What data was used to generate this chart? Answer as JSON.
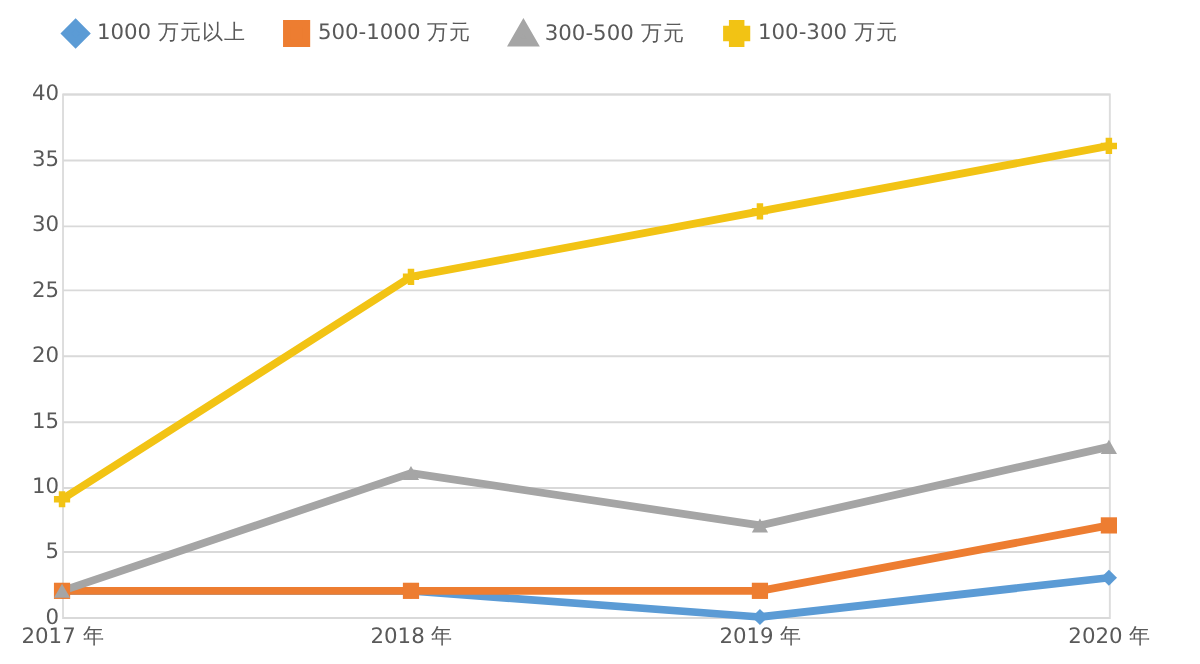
{
  "chart_data": {
    "type": "line",
    "categories": [
      "2017 年",
      "2018 年",
      "2019 年",
      "2020 年"
    ],
    "series": [
      {
        "name": "1000 万元以上",
        "color": "#5b9bd5",
        "marker": "diamond",
        "values": [
          2,
          2,
          0,
          3
        ]
      },
      {
        "name": "500-1000 万元",
        "color": "#ed7d31",
        "marker": "square",
        "values": [
          2,
          2,
          2,
          7
        ]
      },
      {
        "name": "300-500 万元",
        "color": "#a5a5a5",
        "marker": "triangle",
        "values": [
          2,
          11,
          7,
          13
        ]
      },
      {
        "name": "100-300 万元",
        "color": "#f2c314",
        "marker": "cross",
        "values": [
          9,
          26,
          31,
          36
        ]
      }
    ],
    "ylim": [
      0,
      40
    ],
    "yticks": [
      0,
      5,
      10,
      15,
      20,
      25,
      30,
      35,
      40
    ],
    "grid": "y",
    "legend": "top",
    "line_style": "solid"
  }
}
